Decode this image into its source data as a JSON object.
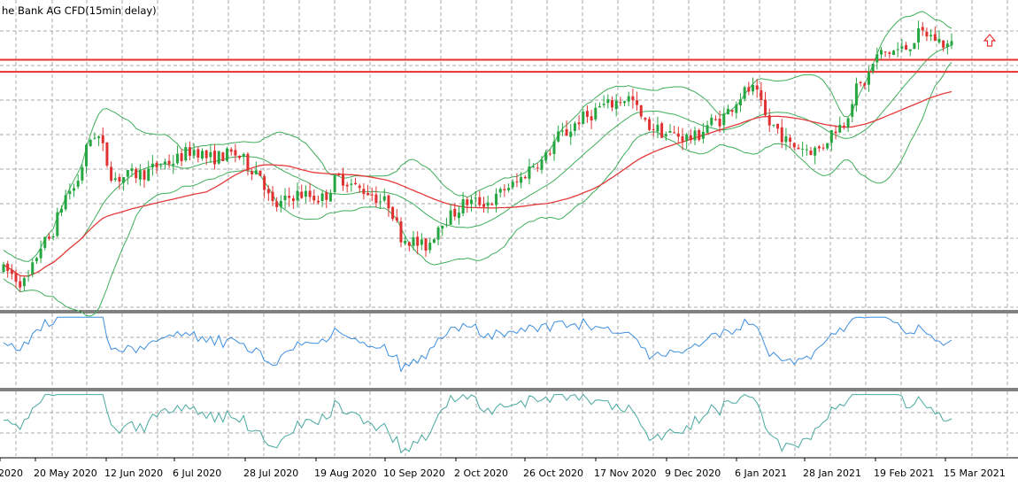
{
  "window": {
    "title": "he Bank AG CFD(15min delay)"
  },
  "colors": {
    "background": "#ffffff",
    "grid": "#a8a8a8",
    "bull_candle": "#26a641",
    "bear_candle": "#e03131",
    "bollinger": "#3fae5a",
    "moving_average": "#e53a3a",
    "horizontal_level": "#e8312f",
    "rsi_line": "#3d8fe0",
    "oscillator_line": "#48a8a0",
    "arrow": "#e8312f",
    "panel_separator": "#000000"
  },
  "icons": {
    "signal_arrow": "up-arrow-icon"
  },
  "chart_data": {
    "type": "candlestick",
    "title": "he Bank AG CFD(15min delay)",
    "xlabel": "",
    "ylabel": "",
    "grid": true,
    "x_ticks": [
      "2020",
      "20 May 2020",
      "12 Jun 2020",
      "6 Jul 2020",
      "28 Jul 2020",
      "19 Aug 2020",
      "10 Sep 2020",
      "2 Oct 2020",
      "26 Oct 2020",
      "17 Nov 2020",
      "9 Dec 2020",
      "6 Jan 2021",
      "28 Jan 2021",
      "19 Feb 2021",
      "15 Mar 2021"
    ],
    "price_trend": [
      [
        "2020-04-27",
        5.9
      ],
      [
        "2020-05-04",
        5.6
      ],
      [
        "2020-05-11",
        6.6
      ],
      [
        "2020-05-20",
        7.9
      ],
      [
        "2020-05-28",
        9.3
      ],
      [
        "2020-06-04",
        8.2
      ],
      [
        "2020-06-12",
        8.3
      ],
      [
        "2020-06-22",
        8.6
      ],
      [
        "2020-07-01",
        8.9
      ],
      [
        "2020-07-06",
        8.7
      ],
      [
        "2020-07-14",
        8.8
      ],
      [
        "2020-07-22",
        8.4
      ],
      [
        "2020-07-28",
        7.5
      ],
      [
        "2020-08-05",
        7.8
      ],
      [
        "2020-08-13",
        7.7
      ],
      [
        "2020-08-19",
        8.2
      ],
      [
        "2020-08-27",
        7.9
      ],
      [
        "2020-09-04",
        7.6
      ],
      [
        "2020-09-10",
        6.7
      ],
      [
        "2020-09-17",
        6.5
      ],
      [
        "2020-09-24",
        7.2
      ],
      [
        "2020-10-02",
        7.6
      ],
      [
        "2020-10-09",
        7.6
      ],
      [
        "2020-10-16",
        8.0
      ],
      [
        "2020-10-26",
        8.6
      ],
      [
        "2020-11-03",
        9.3
      ],
      [
        "2020-11-10",
        9.7
      ],
      [
        "2020-11-17",
        10.0
      ],
      [
        "2020-11-25",
        10.2
      ],
      [
        "2020-12-02",
        9.5
      ],
      [
        "2020-12-09",
        9.3
      ],
      [
        "2020-12-17",
        9.2
      ],
      [
        "2020-12-24",
        9.6
      ],
      [
        "2021-01-06",
        10.4
      ],
      [
        "2021-01-13",
        9.5
      ],
      [
        "2021-01-20",
        9.0
      ],
      [
        "2021-01-28",
        8.9
      ],
      [
        "2021-02-05",
        9.5
      ],
      [
        "2021-02-12",
        10.5
      ],
      [
        "2021-02-19",
        11.3
      ],
      [
        "2021-02-26",
        11.4
      ],
      [
        "2021-03-05",
        11.8
      ],
      [
        "2021-03-15",
        11.5
      ]
    ],
    "horizontal_levels": [
      11.15,
      10.85
    ],
    "moving_average": "red line rising from lower-left to upper-right",
    "bollinger_bands": true,
    "sub_panels": [
      {
        "type": "line",
        "color": "rsi_line",
        "description": "oscillator panel 1"
      },
      {
        "type": "line",
        "color": "oscillator_line",
        "description": "oscillator panel 2"
      }
    ]
  }
}
